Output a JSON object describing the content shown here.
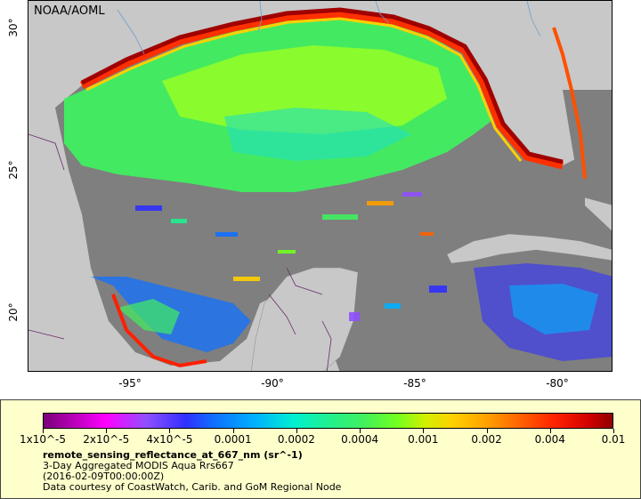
{
  "map": {
    "credit": "NOAA/AOML",
    "lon_ticks": [
      "-95°",
      "-90°",
      "-85°",
      "-80°"
    ],
    "lat_ticks": [
      "30°",
      "25°",
      "20°"
    ]
  },
  "legend": {
    "colorbar_labels": [
      "1x10^-5",
      "2x10^-5",
      "4x10^-5",
      "0.0001",
      "0.0002",
      "0.0004",
      "0.001",
      "0.002",
      "0.004",
      "0.01"
    ],
    "variable": "remote_sensing_reflectance_at_667_nm (sr^-1)",
    "description": "3-Day Aggregated MODIS Aqua Rrs667",
    "date": "(2016-02-09T00:00:00Z)",
    "source": "Data courtesy of CoastWatch, Carib. and GoM Regional Node"
  },
  "colors": {
    "land": "#c8c8c8",
    "nodata_sea": "#7f7f7f",
    "coastal_high": "#b00000",
    "mid_green": "#40f060"
  }
}
